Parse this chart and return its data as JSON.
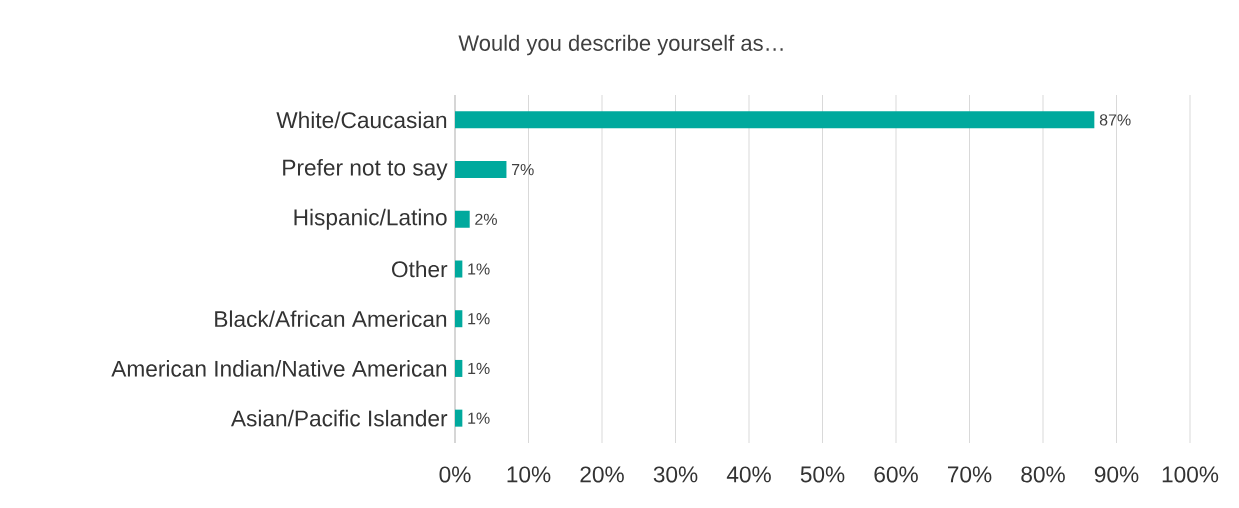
{
  "chart_data": {
    "type": "bar",
    "orientation": "horizontal",
    "title": "Would you describe yourself as…",
    "categories": [
      "White/Caucasian",
      "Prefer not to say",
      "Hispanic/Latino",
      "Other",
      "Black/African American",
      "American Indian/Native American",
      "Asian/Pacific Islander"
    ],
    "values": [
      87,
      7,
      2,
      1,
      1,
      1,
      1
    ],
    "value_labels": [
      "87%",
      "7%",
      "2%",
      "1%",
      "1%",
      "1%",
      "1%"
    ],
    "color": "#00a99d",
    "xlim": [
      0,
      100
    ],
    "xticks": [
      {
        "value": 0,
        "label": "0%"
      },
      {
        "value": 10,
        "label": "10%"
      },
      {
        "value": 20,
        "label": "20%"
      },
      {
        "value": 30,
        "label": "30%"
      },
      {
        "value": 40,
        "label": "40%"
      },
      {
        "value": 50,
        "label": "50%"
      },
      {
        "value": 60,
        "label": "60%"
      },
      {
        "value": 70,
        "label": "70%"
      },
      {
        "value": 80,
        "label": "80%"
      },
      {
        "value": 90,
        "label": "90%"
      },
      {
        "value": 100,
        "label": "100%"
      }
    ],
    "grid": "x"
  }
}
